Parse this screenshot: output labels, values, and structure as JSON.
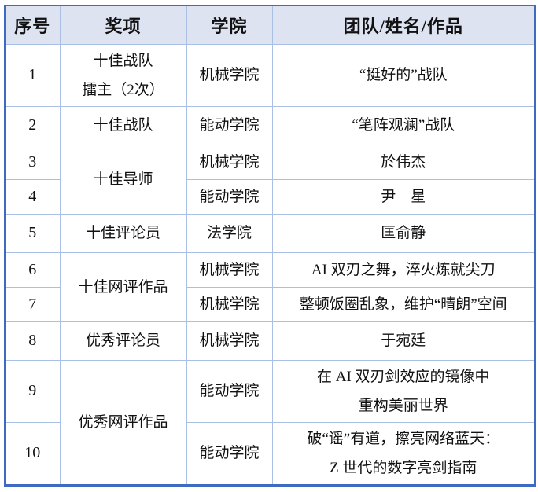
{
  "palette": {
    "outer_border": "#3f6ac1",
    "inner_border": "#a9bfe3",
    "header_bg": "#dee3f2",
    "text": "#111111"
  },
  "table": {
    "headers": [
      "序号",
      "奖项",
      "学院",
      "团队/姓名/作品"
    ],
    "rows": [
      {
        "no": "1",
        "award1": "十佳战队",
        "award2": "擂主（2次）",
        "college": "机械学院",
        "work1": "“挺好的”战队"
      },
      {
        "no": "2",
        "award1": "十佳战队",
        "college": "能动学院",
        "work1": "“笔阵观澜”战队"
      },
      {
        "no": "3",
        "award1": "十佳导师",
        "college": "机械学院",
        "work1": "於伟杰"
      },
      {
        "no": "4",
        "college": "能动学院",
        "work1": "尹　星"
      },
      {
        "no": "5",
        "award1": "十佳评论员",
        "college": "法学院",
        "work1": "匡俞静"
      },
      {
        "no": "6",
        "award1": "十佳网评作品",
        "college": "机械学院",
        "work1": "AI 双刃之舞，淬火炼就尖刀"
      },
      {
        "no": "7",
        "college": "机械学院",
        "work1": "整顿饭圈乱象，维护“晴朗”空间"
      },
      {
        "no": "8",
        "award1": "优秀评论员",
        "college": "机械学院",
        "work1": "于宛廷"
      },
      {
        "no": "9",
        "award1": "优秀网评作品",
        "college": "能动学院",
        "work1": "在 AI 双刃剑效应的镜像中",
        "work2": "重构美丽世界"
      },
      {
        "no": "10",
        "college": "能动学院",
        "work1": "破“谣”有道，擦亮网络蓝天：",
        "work2": "Z 世代的数字亮剑指南"
      }
    ]
  }
}
